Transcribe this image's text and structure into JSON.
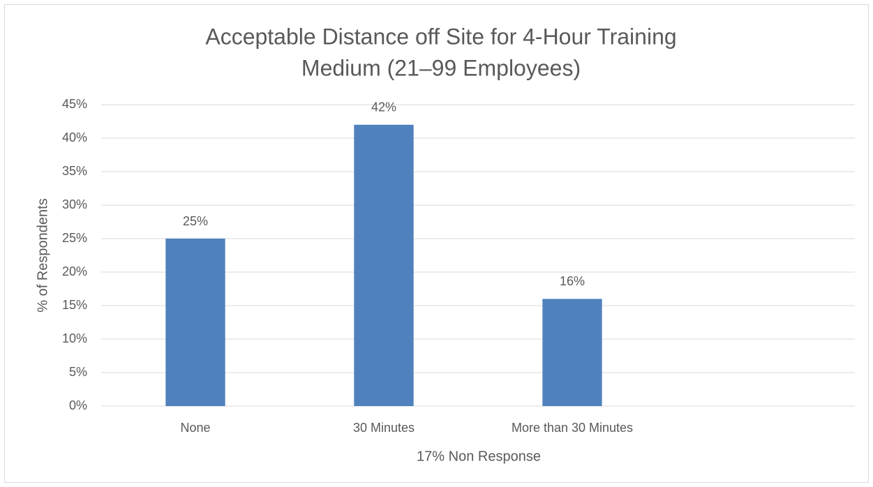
{
  "chart_data": {
    "type": "bar",
    "title": [
      "Acceptable Distance off Site for 4-Hour Training",
      "Medium (21–99 Employees)"
    ],
    "x_label": "17% Non Response",
    "y_label": "% of Respondents",
    "categories": [
      "None",
      "30 Minutes",
      "More than 30 Minutes",
      null
    ],
    "values": [
      25,
      42,
      16,
      null
    ],
    "value_labels": [
      "25%",
      "42%",
      "16%",
      null
    ],
    "color": "#4f81bd",
    "ylim": [
      0,
      45
    ],
    "yticks": [
      {
        "value": 0,
        "label": "0%"
      },
      {
        "value": 5,
        "label": "5%"
      },
      {
        "value": 10,
        "label": "10%"
      },
      {
        "value": 15,
        "label": "15%"
      },
      {
        "value": 20,
        "label": "20%"
      },
      {
        "value": 25,
        "label": "25%"
      },
      {
        "value": 30,
        "label": "30%"
      },
      {
        "value": 35,
        "label": "35%"
      },
      {
        "value": 40,
        "label": "40%"
      },
      {
        "value": 45,
        "label": "45%"
      }
    ],
    "grid": true
  }
}
